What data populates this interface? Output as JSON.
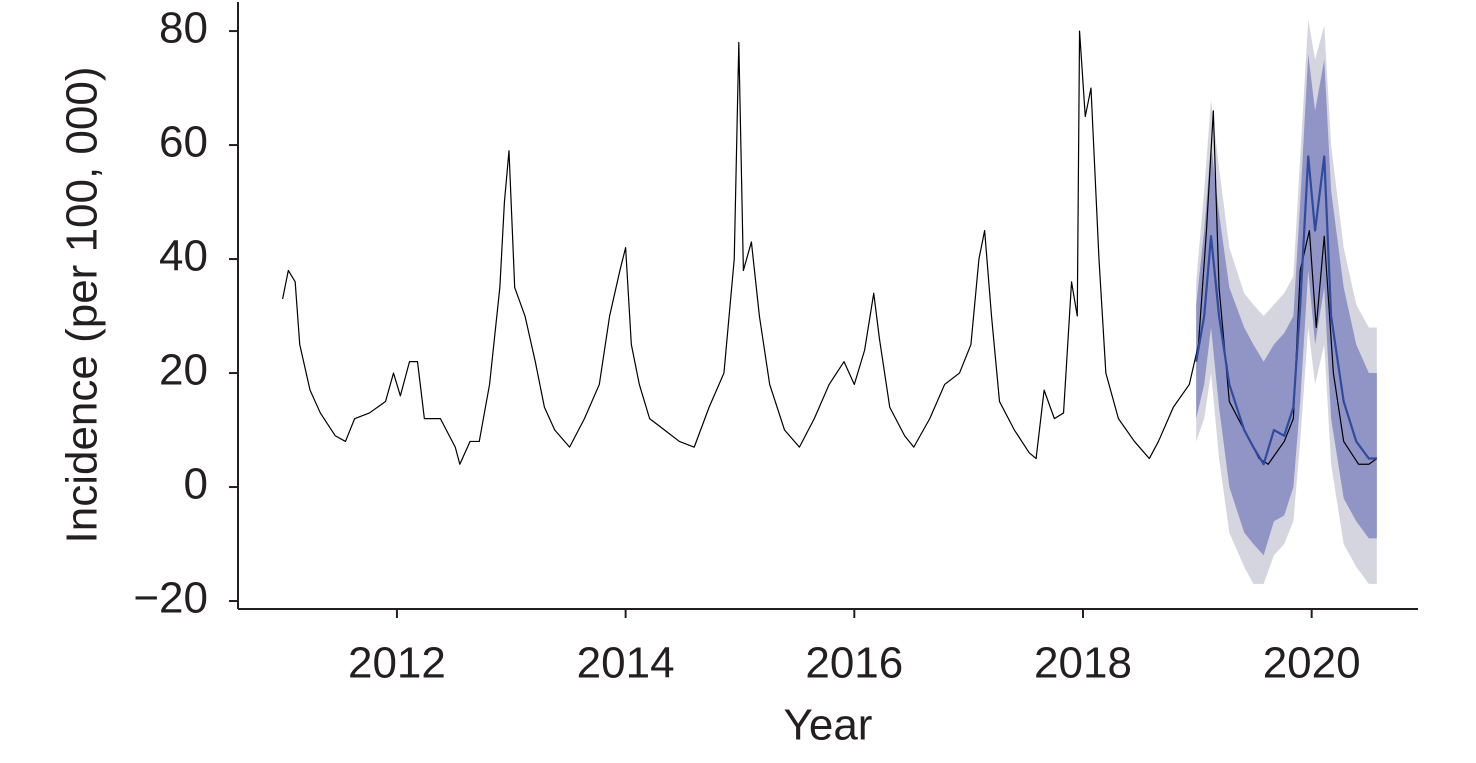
{
  "chart_data": {
    "type": "line",
    "xlabel": "Year",
    "ylabel": "Incidence (per 100, 000)",
    "xlim": [
      2010.61,
      2020.93
    ],
    "ylim": [
      -21.4,
      85.1
    ],
    "xticks": [
      2012,
      2014,
      2016,
      2018,
      2020
    ],
    "yticks": [
      {
        "value": -20,
        "label": "−20"
      },
      0,
      20,
      40,
      60,
      80
    ],
    "bands": [
      {
        "color": "#d5d5df",
        "x": [
          2018.99,
          2019.06,
          2019.12,
          2019.19,
          2019.28,
          2019.41,
          2019.49,
          2019.58,
          2019.67,
          2019.76,
          2019.84,
          2019.9,
          2019.97,
          2020.03,
          2020.11,
          2020.17,
          2020.28,
          2020.39,
          2020.5,
          2020.57
        ],
        "lower": [
          8,
          12,
          20,
          5,
          -8,
          -14,
          -17,
          -17,
          -12,
          -10,
          -6,
          8,
          28,
          18,
          25,
          4,
          -10,
          -14,
          -17,
          -17
        ],
        "upper": [
          36,
          52,
          68,
          56,
          42,
          34,
          32,
          30,
          32,
          34,
          37,
          58,
          82,
          75,
          81,
          60,
          42,
          32,
          28,
          28
        ]
      },
      {
        "color": "#9195c6",
        "x": [
          2018.99,
          2019.06,
          2019.12,
          2019.19,
          2019.28,
          2019.41,
          2019.49,
          2019.58,
          2019.67,
          2019.76,
          2019.84,
          2019.9,
          2019.97,
          2020.03,
          2020.11,
          2020.17,
          2020.28,
          2020.39,
          2020.5,
          2020.57
        ],
        "lower": [
          12,
          18,
          28,
          14,
          0,
          -8,
          -10,
          -12,
          -6,
          -5,
          0,
          15,
          38,
          25,
          35,
          12,
          -2,
          -6,
          -9,
          -9
        ],
        "upper": [
          32,
          45,
          60,
          48,
          35,
          28,
          25,
          22,
          25,
          27,
          30,
          50,
          76,
          66,
          75,
          52,
          35,
          25,
          20,
          20
        ]
      }
    ],
    "series": [
      {
        "color": "#000000",
        "x": [
          2011.0,
          2011.05,
          2011.11,
          2011.15,
          2011.24,
          2011.33,
          2011.46,
          2011.55,
          2011.63,
          2011.76,
          2011.9,
          2011.97,
          2012.03,
          2012.11,
          2012.18,
          2012.24,
          2012.38,
          2012.51,
          2012.55,
          2012.64,
          2012.72,
          2012.81,
          2012.9,
          2012.94,
          2012.98,
          2013.03,
          2013.12,
          2013.21,
          2013.29,
          2013.38,
          2013.51,
          2013.64,
          2013.77,
          2013.86,
          2013.95,
          2014.0,
          2014.05,
          2014.12,
          2014.21,
          2014.34,
          2014.47,
          2014.6,
          2014.73,
          2014.86,
          2014.95,
          2014.99,
          2015.03,
          2015.1,
          2015.17,
          2015.26,
          2015.39,
          2015.52,
          2015.65,
          2015.78,
          2015.91,
          2016.0,
          2016.09,
          2016.17,
          2016.22,
          2016.31,
          2016.44,
          2016.52,
          2016.66,
          2016.79,
          2016.92,
          2017.02,
          2017.09,
          2017.14,
          2017.2,
          2017.27,
          2017.4,
          2017.53,
          2017.59,
          2017.66,
          2017.75,
          2017.83,
          2017.9,
          2017.95,
          2017.97,
          2018.02,
          2018.07,
          2018.14,
          2018.2,
          2018.31,
          2018.45,
          2018.58,
          2018.66,
          2018.79,
          2018.93,
          2019.01,
          2019.08,
          2019.14,
          2019.19,
          2019.28,
          2019.41,
          2019.54,
          2019.62,
          2019.76,
          2019.84,
          2019.9,
          2019.98,
          2020.04,
          2020.11,
          2020.19,
          2020.28,
          2020.41,
          2020.5,
          2020.57
        ],
        "values": [
          33,
          38,
          36,
          25,
          17,
          13,
          9,
          8,
          12,
          13,
          15,
          20,
          16,
          22,
          22,
          12,
          12,
          7,
          4,
          8,
          8,
          18,
          35,
          50,
          59,
          35,
          30,
          22,
          14,
          10,
          7,
          12,
          18,
          30,
          38,
          42,
          25,
          18,
          12,
          10,
          8,
          7,
          14,
          20,
          40,
          78,
          38,
          43,
          30,
          18,
          10,
          7,
          12,
          18,
          22,
          18,
          24,
          34,
          26,
          14,
          9,
          7,
          12,
          18,
          20,
          25,
          40,
          45,
          30,
          15,
          10,
          6,
          5,
          17,
          12,
          13,
          36,
          30,
          80,
          65,
          70,
          40,
          20,
          12,
          8,
          5,
          8,
          14,
          18,
          25,
          45,
          66,
          35,
          15,
          10,
          5,
          4,
          8,
          12,
          38,
          45,
          28,
          44,
          20,
          8,
          4,
          4,
          5
        ]
      },
      {
        "color": "#2f4a9f",
        "x": [
          2018.99,
          2019.06,
          2019.12,
          2019.19,
          2019.28,
          2019.41,
          2019.49,
          2019.58,
          2019.67,
          2019.76,
          2019.84,
          2019.9,
          2019.97,
          2020.03,
          2020.11,
          2020.17,
          2020.28,
          2020.39,
          2020.5,
          2020.57
        ],
        "values": [
          22,
          30,
          44,
          30,
          18,
          10,
          7,
          4,
          10,
          9,
          14,
          32,
          58,
          45,
          58,
          30,
          15,
          8,
          5,
          5
        ]
      }
    ]
  }
}
